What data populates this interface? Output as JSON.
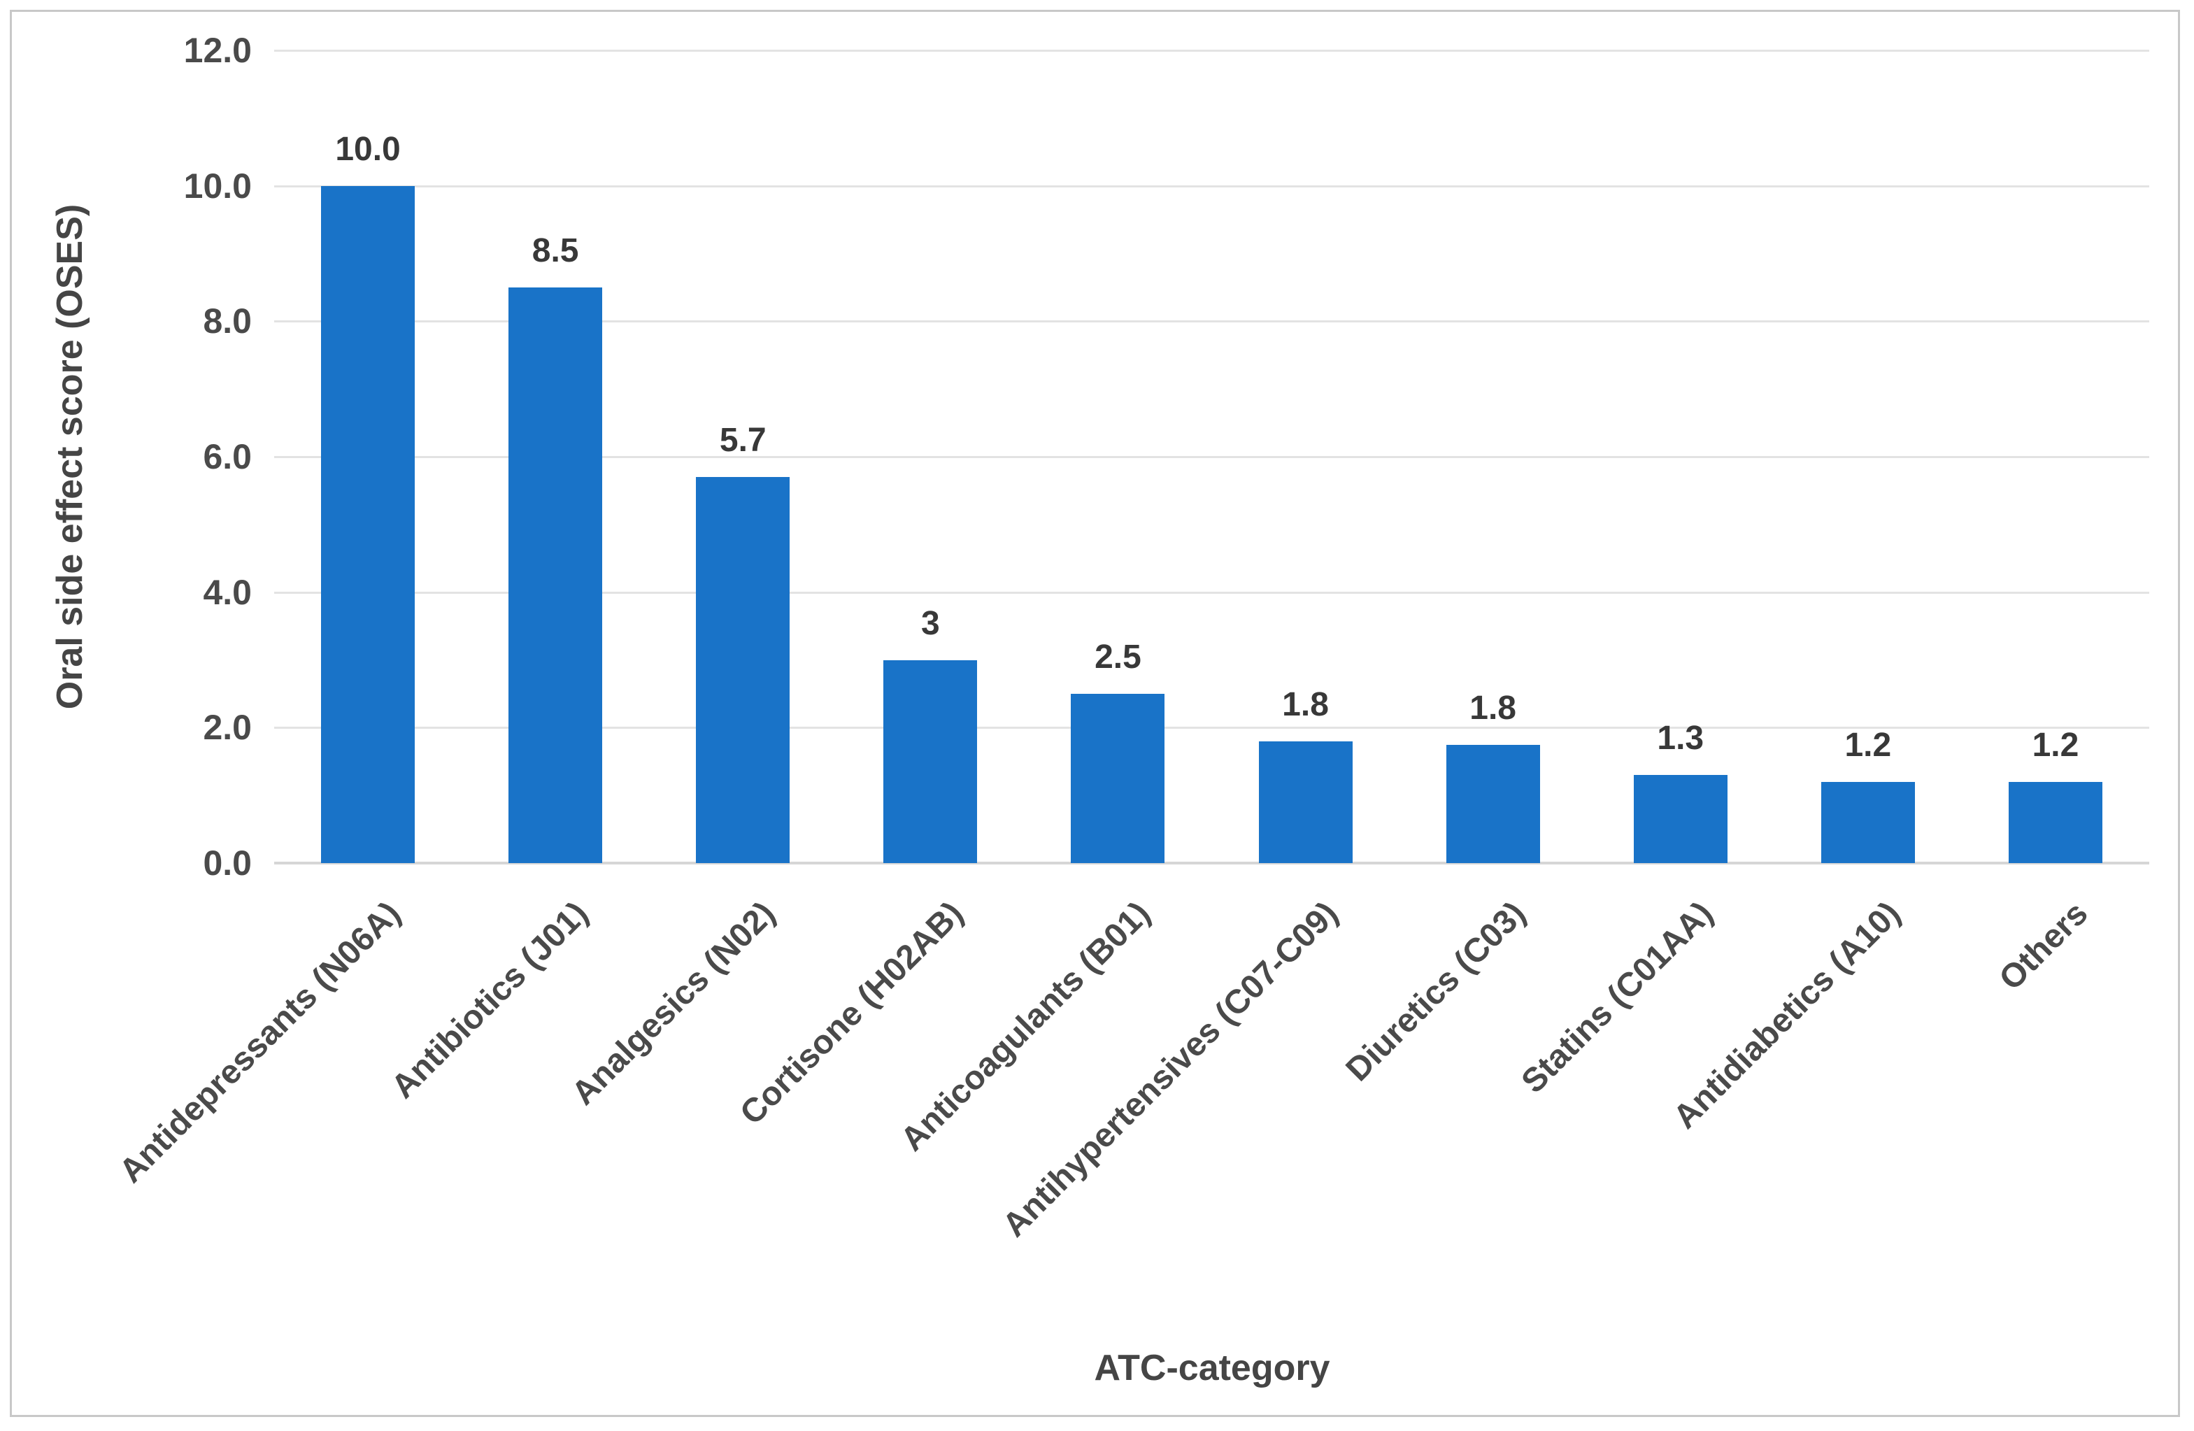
{
  "figure": {
    "background_color": "#FFFFFF",
    "border_color": "#C8C8C8"
  },
  "chart_data": {
    "type": "bar",
    "title": "",
    "xlabel": "ATC-category",
    "ylabel": "Oral side effect score (OSES)",
    "categories": [
      "Antidepressants (N06A)",
      "Antibiotics (J01)",
      "Analgesics (N02)",
      "Cortisone (H02AB)",
      "Anticoagulants (B01)",
      "Antihypertensives (C07-C09)",
      "Diuretics (C03)",
      "Statins (C01AA)",
      "Antidiabetics (A10)",
      "Others"
    ],
    "values": [
      10.0,
      8.5,
      5.7,
      3.0,
      2.5,
      1.8,
      1.75,
      1.3,
      1.2,
      1.2
    ],
    "bar_labels": [
      "10.0",
      "8.5",
      "5.7",
      "3",
      "2.5",
      "1.8",
      "1.8",
      "1.3",
      "1.2",
      "1.2"
    ],
    "ylim": [
      0,
      12
    ],
    "ytick_labels": [
      "0.0",
      "2.0",
      "4.0",
      "6.0",
      "8.0",
      "10.0",
      "12.0"
    ],
    "grid": "horizontal-major",
    "legend": "none",
    "bar_color": "#1973C8",
    "value_label_color": "#383838",
    "tick_label_color": "#4A4A4A",
    "axis_title_color": "#454545",
    "gridline_color": "#E3E3E3",
    "axis_line_color": "#D6D6D6"
  }
}
